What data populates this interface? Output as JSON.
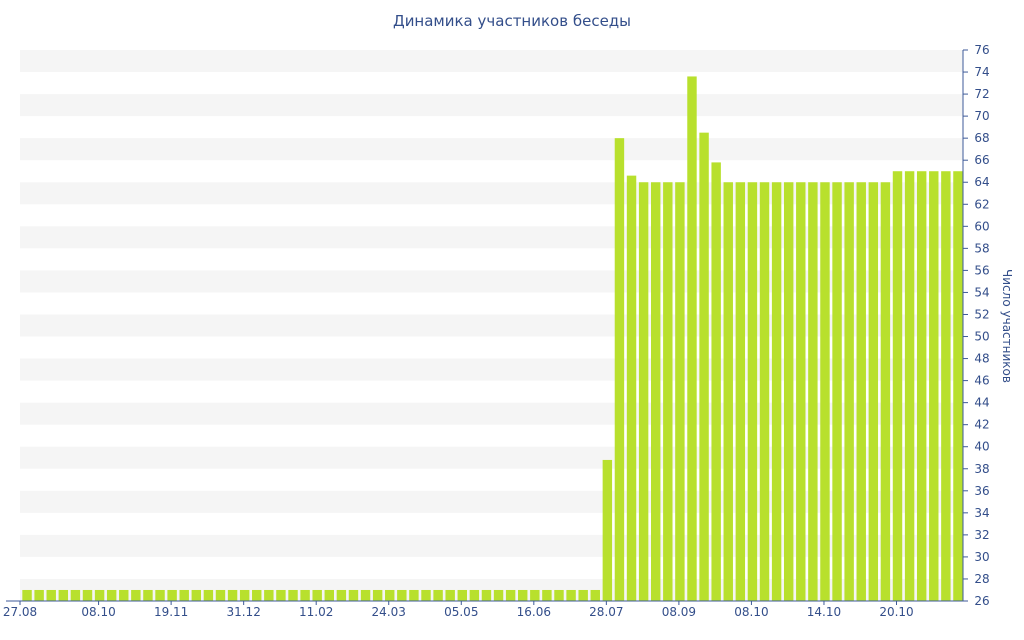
{
  "chart_data": {
    "type": "bar",
    "title": "Динамика участников беседы",
    "ylabel": "Число участников",
    "xlabel": "",
    "ylim": [
      26,
      76
    ],
    "y_ticks": [
      26,
      28,
      30,
      32,
      34,
      36,
      38,
      40,
      42,
      44,
      46,
      48,
      50,
      52,
      54,
      56,
      58,
      60,
      62,
      64,
      66,
      68,
      70,
      72,
      74,
      76
    ],
    "x_tick_labels": [
      "27.08",
      "08.10",
      "19.11",
      "31.12",
      "11.02",
      "24.03",
      "05.05",
      "16.06",
      "28.07",
      "08.09",
      "08.10",
      "14.10",
      "20.10"
    ],
    "series": [
      {
        "values": [
          27,
          27,
          27,
          27,
          27,
          27,
          27,
          27,
          27,
          27,
          27,
          27,
          27,
          27,
          27,
          27,
          27,
          27,
          27,
          27,
          27,
          27,
          27,
          27,
          27,
          27,
          27,
          27,
          27,
          27,
          27,
          27,
          27,
          27,
          27,
          27,
          27,
          27,
          27,
          27,
          27,
          27,
          27,
          27,
          27,
          27,
          27,
          27,
          38.8,
          68,
          64.6,
          64,
          64,
          64,
          64,
          73.6,
          68.5,
          65.8,
          64,
          64,
          64,
          64,
          64,
          64,
          64,
          64,
          64,
          64,
          64,
          64,
          64,
          64,
          65,
          65,
          65,
          65,
          65,
          65
        ]
      }
    ],
    "bar_color": "#b8e02d",
    "grid_band_color": "#f5f5f5",
    "axis_color": "#3d5a99",
    "text_color": "#334e8a",
    "grid": true,
    "y_axis_position": "right"
  }
}
